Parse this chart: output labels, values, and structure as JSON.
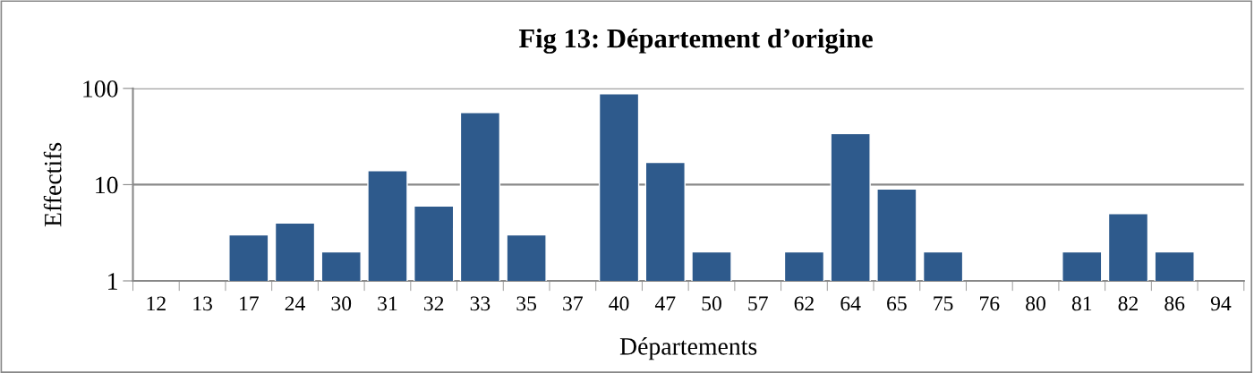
{
  "chart_data": {
    "type": "bar",
    "title": "Fig 13: Département d’origine",
    "xlabel": "Départements",
    "ylabel": "Effectifs",
    "categories": [
      "12",
      "13",
      "17",
      "24",
      "30",
      "31",
      "32",
      "33",
      "35",
      "37",
      "40",
      "47",
      "50",
      "57",
      "62",
      "64",
      "65",
      "75",
      "76",
      "80",
      "81",
      "82",
      "86",
      "94"
    ],
    "values": [
      null,
      null,
      3,
      4,
      2,
      14,
      6,
      56,
      3,
      null,
      88,
      17,
      2,
      null,
      2,
      34,
      9,
      2,
      null,
      null,
      2,
      5,
      2,
      null
    ],
    "color": "#2e5a8c",
    "log": true,
    "ylim": [
      1,
      100
    ],
    "yticks": [
      1,
      10,
      100
    ],
    "grid": "y",
    "legend": false
  }
}
